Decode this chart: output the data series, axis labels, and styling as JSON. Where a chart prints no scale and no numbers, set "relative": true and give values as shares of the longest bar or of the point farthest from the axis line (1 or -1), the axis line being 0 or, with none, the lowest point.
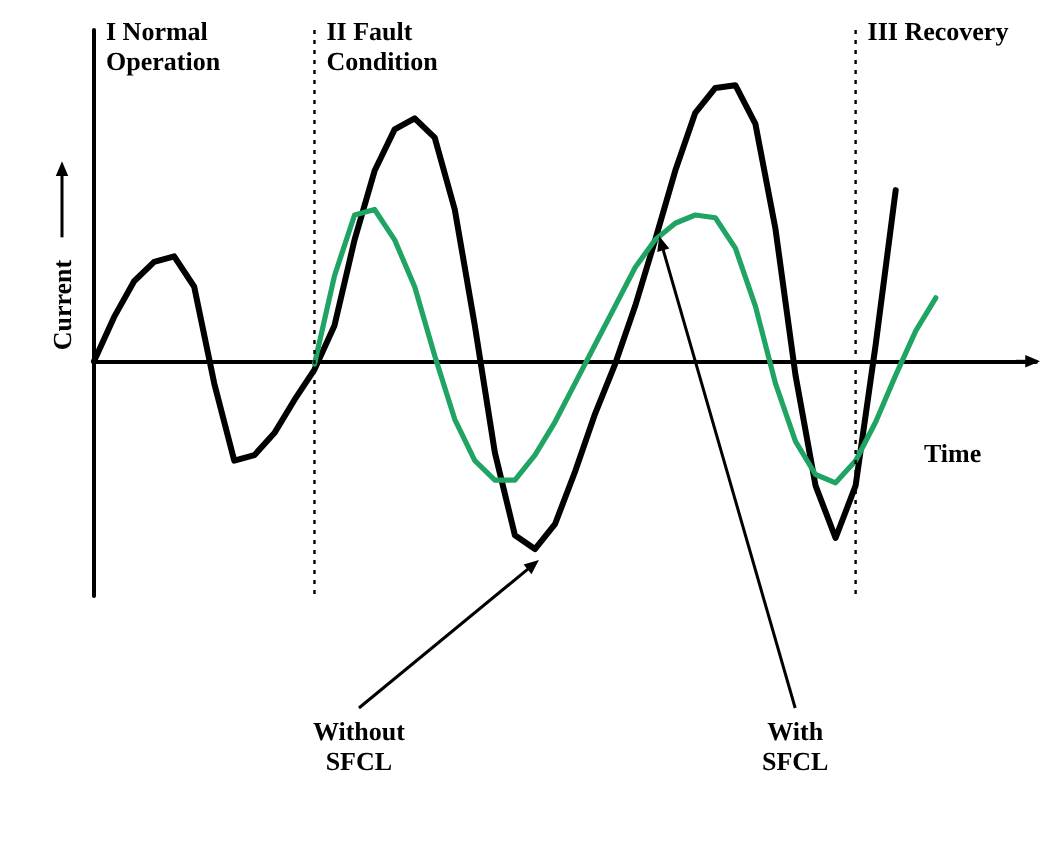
{
  "chart_data": {
    "type": "line",
    "relative": true,
    "xlabel": "Time",
    "ylabel": "Current",
    "marker": "none",
    "line_style": "solid",
    "categories": [
      null,
      null,
      null,
      null,
      null,
      null,
      null,
      null,
      null,
      null,
      null,
      null,
      null,
      null,
      null,
      null,
      null,
      null,
      null,
      null,
      null,
      null,
      null,
      null,
      null,
      null,
      null,
      null,
      null,
      null,
      null,
      null,
      null,
      null,
      null,
      null,
      null,
      null,
      null,
      null,
      null,
      null,
      null,
      null,
      null,
      null,
      null,
      null
    ],
    "series": [
      {
        "color": "#000000",
        "values": [
          0,
          0.16,
          0.29,
          0.36,
          0.38,
          0.27,
          -0.08,
          -0.36,
          -0.34,
          -0.26,
          -0.14,
          -0.03,
          0.13,
          0.44,
          0.69,
          0.84,
          0.88,
          0.81,
          0.55,
          0.13,
          -0.33,
          -0.63,
          -0.68,
          -0.59,
          -0.4,
          -0.19,
          -0.01,
          0.2,
          0.44,
          0.69,
          0.9,
          0.99,
          1,
          0.86,
          0.48,
          -0.05,
          -0.45,
          -0.64,
          -0.45,
          0.06,
          0.62,
          null,
          null,
          null,
          null,
          null,
          null,
          null
        ]
      },
      {
        "color": "#1fa463",
        "values": [
          null,
          null,
          null,
          null,
          null,
          null,
          null,
          null,
          null,
          null,
          null,
          -0.01,
          0.31,
          0.53,
          0.55,
          0.44,
          0.27,
          0.02,
          -0.21,
          -0.36,
          -0.43,
          -0.43,
          -0.34,
          -0.22,
          -0.08,
          0.06,
          0.2,
          0.34,
          0.44,
          0.5,
          0.53,
          0.52,
          0.41,
          0.2,
          -0.08,
          -0.29,
          -0.41,
          -0.44,
          -0.36,
          -0.22,
          -0.05,
          0.11,
          0.23,
          null,
          null,
          null,
          null,
          null
        ]
      }
    ],
    "annotations": [
      "I Normal Operation",
      "II Fault Condition",
      "III Recovery",
      "Without SFCL",
      "With SFCL"
    ]
  }
}
